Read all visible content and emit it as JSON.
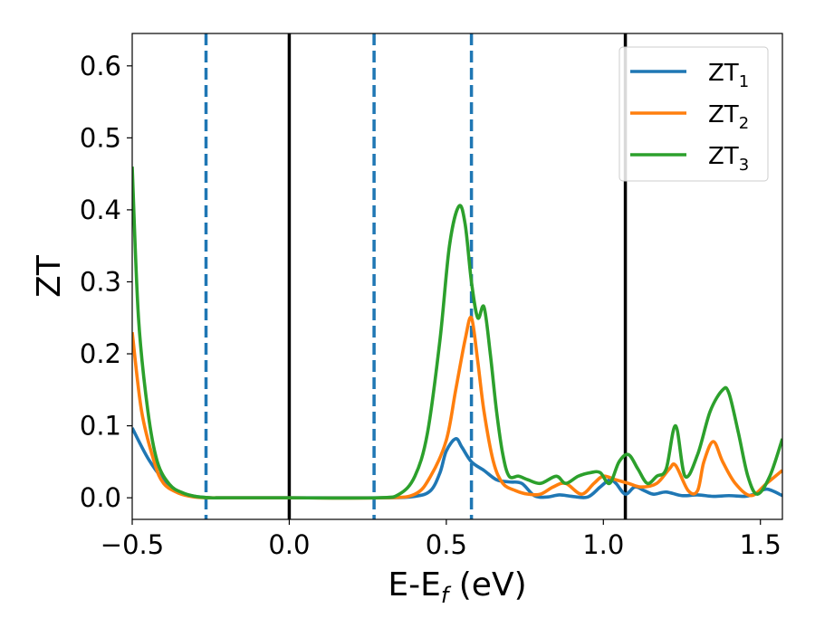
{
  "chart_data": {
    "type": "line",
    "xlabel": "E-E",
    "xlabel_subscript": "f",
    "xlabel_unit": " (eV)",
    "ylabel": "ZT",
    "xlim": [
      -0.5,
      1.57
    ],
    "ylim": [
      -0.03,
      0.645
    ],
    "xticks": [
      -0.5,
      0.0,
      0.5,
      1.0,
      1.5
    ],
    "xtick_labels": [
      "−0.5",
      "0.0",
      "0.5",
      "1.0",
      "1.5"
    ],
    "yticks": [
      0.0,
      0.1,
      0.2,
      0.3,
      0.4,
      0.5,
      0.6
    ],
    "ytick_labels": [
      "0.0",
      "0.1",
      "0.2",
      "0.3",
      "0.4",
      "0.5",
      "0.6"
    ],
    "grid": false,
    "legend_position": "top-right",
    "vertical_lines": [
      {
        "x": -0.265,
        "style": "dashed",
        "color": "#1f77b4"
      },
      {
        "x": 0.0,
        "style": "solid",
        "color": "#000000"
      },
      {
        "x": 0.27,
        "style": "dashed",
        "color": "#1f77b4"
      },
      {
        "x": 0.58,
        "style": "dashed",
        "color": "#1f77b4"
      },
      {
        "x": 1.07,
        "style": "solid",
        "color": "#000000"
      }
    ],
    "series": [
      {
        "name": "ZT",
        "name_subscript": "1",
        "color": "#1f77b4",
        "x": [
          -0.5,
          -0.45,
          -0.4,
          -0.35,
          -0.3,
          -0.25,
          -0.2,
          0.0,
          0.3,
          0.4,
          0.45,
          0.48,
          0.5,
          0.53,
          0.55,
          0.58,
          0.62,
          0.66,
          0.7,
          0.74,
          0.78,
          0.82,
          0.86,
          0.9,
          0.95,
          0.99,
          1.02,
          1.04,
          1.07,
          1.1,
          1.13,
          1.16,
          1.2,
          1.25,
          1.3,
          1.35,
          1.4,
          1.45,
          1.48,
          1.52,
          1.57
        ],
        "y": [
          0.097,
          0.055,
          0.025,
          0.008,
          0.002,
          0.0,
          0.0,
          0.0,
          0.0,
          0.002,
          0.01,
          0.035,
          0.065,
          0.082,
          0.07,
          0.05,
          0.038,
          0.025,
          0.022,
          0.02,
          0.003,
          0.001,
          0.004,
          0.002,
          0.001,
          0.015,
          0.025,
          0.02,
          0.005,
          0.015,
          0.01,
          0.005,
          0.008,
          0.003,
          0.004,
          0.002,
          0.003,
          0.002,
          0.005,
          0.012,
          0.003
        ]
      },
      {
        "name": "ZT",
        "name_subscript": "2",
        "color": "#ff7f0e",
        "x": [
          -0.5,
          -0.47,
          -0.43,
          -0.4,
          -0.35,
          -0.3,
          -0.25,
          -0.2,
          0.0,
          0.3,
          0.4,
          0.45,
          0.5,
          0.53,
          0.56,
          0.58,
          0.6,
          0.62,
          0.65,
          0.68,
          0.72,
          0.76,
          0.8,
          0.84,
          0.88,
          0.93,
          0.97,
          1.0,
          1.04,
          1.08,
          1.12,
          1.17,
          1.21,
          1.23,
          1.27,
          1.3,
          1.32,
          1.35,
          1.38,
          1.42,
          1.47,
          1.52,
          1.57
        ],
        "y": [
          0.23,
          0.12,
          0.05,
          0.02,
          0.006,
          0.001,
          0.0,
          0.0,
          0.0,
          0.0,
          0.005,
          0.03,
          0.08,
          0.15,
          0.22,
          0.25,
          0.19,
          0.12,
          0.05,
          0.02,
          0.01,
          0.005,
          0.005,
          0.015,
          0.02,
          0.005,
          0.02,
          0.03,
          0.025,
          0.02,
          0.015,
          0.02,
          0.04,
          0.045,
          0.01,
          0.01,
          0.05,
          0.078,
          0.05,
          0.02,
          0.003,
          0.02,
          0.038
        ]
      },
      {
        "name": "ZT",
        "name_subscript": "3",
        "color": "#2ca02c",
        "x": [
          -0.5,
          -0.48,
          -0.45,
          -0.42,
          -0.38,
          -0.34,
          -0.3,
          -0.25,
          -0.2,
          0.0,
          0.28,
          0.35,
          0.4,
          0.44,
          0.48,
          0.51,
          0.54,
          0.56,
          0.58,
          0.6,
          0.62,
          0.64,
          0.66,
          0.68,
          0.7,
          0.73,
          0.76,
          0.8,
          0.85,
          0.88,
          0.92,
          0.96,
          0.99,
          1.02,
          1.05,
          1.08,
          1.11,
          1.14,
          1.17,
          1.2,
          1.23,
          1.26,
          1.3,
          1.34,
          1.38,
          1.4,
          1.43,
          1.46,
          1.49,
          1.53,
          1.57
        ],
        "y": [
          0.46,
          0.25,
          0.12,
          0.05,
          0.018,
          0.007,
          0.002,
          0.0,
          0.0,
          0.0,
          0.0,
          0.005,
          0.03,
          0.09,
          0.22,
          0.35,
          0.405,
          0.38,
          0.3,
          0.25,
          0.265,
          0.2,
          0.12,
          0.06,
          0.03,
          0.03,
          0.025,
          0.02,
          0.03,
          0.02,
          0.03,
          0.035,
          0.035,
          0.02,
          0.05,
          0.06,
          0.04,
          0.02,
          0.03,
          0.04,
          0.1,
          0.03,
          0.06,
          0.12,
          0.15,
          0.145,
          0.09,
          0.03,
          0.005,
          0.03,
          0.082
        ]
      }
    ]
  }
}
